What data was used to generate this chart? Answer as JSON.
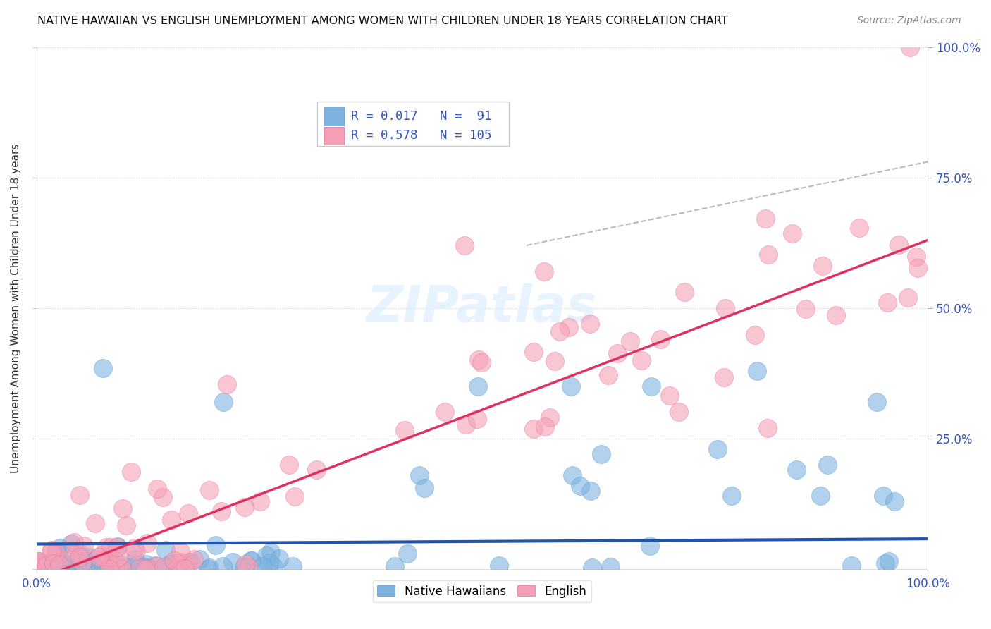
{
  "title": "NATIVE HAWAIIAN VS ENGLISH UNEMPLOYMENT AMONG WOMEN WITH CHILDREN UNDER 18 YEARS CORRELATION CHART",
  "source": "Source: ZipAtlas.com",
  "ylabel": "Unemployment Among Women with Children Under 18 years",
  "blue_color": "#7EB3E0",
  "blue_edge_color": "#5A9ACC",
  "pink_color": "#F5A0B8",
  "pink_edge_color": "#E87090",
  "blue_line_color": "#2255AA",
  "pink_line_color": "#E03060",
  "gray_line_color": "#C0C0C0",
  "title_fontsize": 11.5,
  "watermark": "ZIPatlas",
  "legend_r1": "R = 0.017",
  "legend_n1": "N =  91",
  "legend_r2": "R = 0.578",
  "legend_n2": "N = 105"
}
